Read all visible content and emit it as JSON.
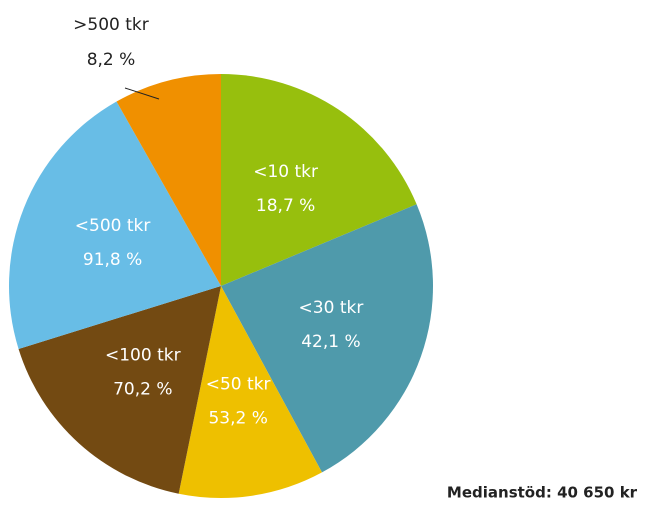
{
  "chart_data": {
    "type": "pie",
    "categories": [
      "<10 tkr",
      "<30 tkr",
      "<50 tkr",
      "<100 tkr",
      "<500 tkr",
      ">500 tkr"
    ],
    "values": [
      18.7,
      42.1,
      53.2,
      70.2,
      91.8,
      8.2
    ],
    "value_labels": [
      "18,7 %",
      "42,1 %",
      "53,2 %",
      "70,2 %",
      "91,8 %",
      "8,2 %"
    ],
    "colors": [
      "#97bf0d",
      "#4f9aab",
      "#eec000",
      "#734a12",
      "#68bde6",
      "#f09000"
    ],
    "annotation": "Medianstöd: 40 650 kr"
  }
}
